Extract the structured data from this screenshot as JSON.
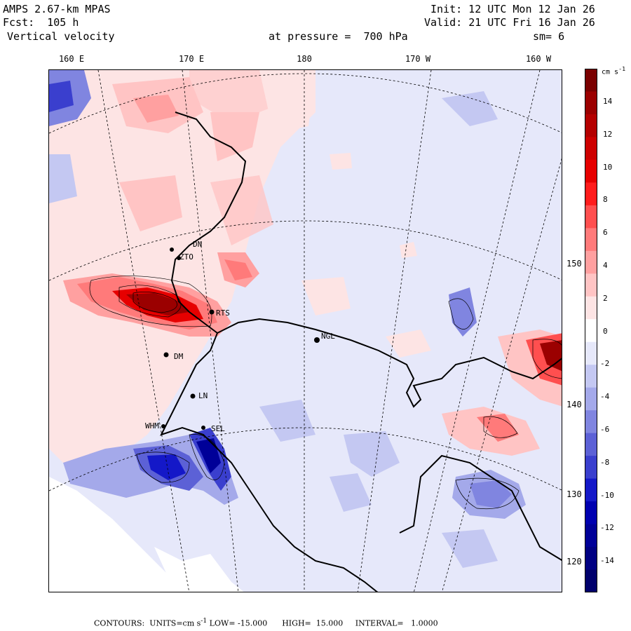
{
  "header": {
    "model": "AMPS 2.67-km MPAS",
    "fcst": "Fcst:  105 h",
    "field": "Vertical velocity",
    "init": "Init: 12 UTC Mon 12 Jan 26",
    "valid": "Valid: 21 UTC Fri 16 Jan 26",
    "pressure": "at pressure =  700 hPa",
    "smoothing": "sm= 6"
  },
  "longitude_labels": [
    "160 E",
    "170 E",
    "180",
    "170 W",
    "160 W"
  ],
  "latitude_labels": [
    "150 W",
    "140 W",
    "130 W",
    "120 W"
  ],
  "stations": [
    "NGL",
    "RTS",
    "DM",
    "LN",
    "SEL",
    "WHM",
    "DN",
    "ZTO"
  ],
  "colorbar": {
    "units": "cm s",
    "units_exp": "-1",
    "ticks": [
      "14",
      "12",
      "10",
      "8",
      "6",
      "4",
      "2",
      "0",
      "-2",
      "-4",
      "-6",
      "-8",
      "-10",
      "-12",
      "-14"
    ],
    "colors": [
      "#7a0000",
      "#9b0000",
      "#b40000",
      "#cd0000",
      "#e60000",
      "#ff1c1c",
      "#ff4f4f",
      "#ff7a7a",
      "#ffa0a0",
      "#ffc4c4",
      "#fde4e4",
      "#ffffff",
      "#e6e8fa",
      "#c4c8f2",
      "#a4a9ea",
      "#8085e0",
      "#5c61d6",
      "#3a3fce",
      "#1418c8",
      "#0000b0",
      "#000098",
      "#000082",
      "#00006c"
    ]
  },
  "footer": {
    "contours": "CONTOURS:  UNITS=cm s",
    "exp": "-1",
    "low": " LOW= -15.000",
    "high": "HIGH=  15.000",
    "interval": "INTERVAL=   1.0000"
  }
}
